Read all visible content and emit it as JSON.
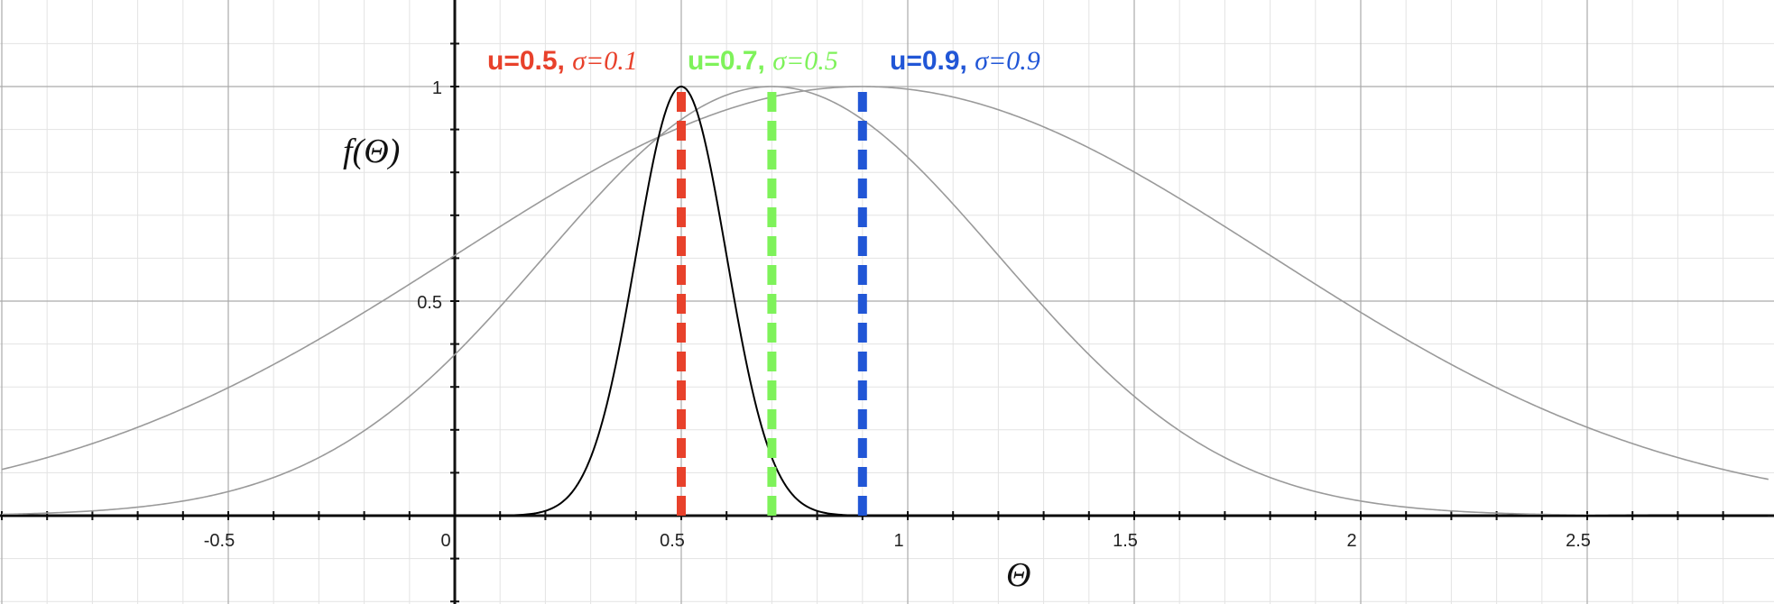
{
  "chart_data": {
    "type": "line",
    "title": "",
    "xlabel": "Θ",
    "ylabel": "f(Θ)",
    "xlim": [
      -1.0,
      2.9
    ],
    "ylim": [
      -0.2,
      1.2
    ],
    "grid": true,
    "x_ticks": [
      {
        "value": -0.5,
        "label": "-0.5"
      },
      {
        "value": 0,
        "label": "0"
      },
      {
        "value": 0.5,
        "label": "0.5"
      },
      {
        "value": 1,
        "label": "1"
      },
      {
        "value": 1.5,
        "label": "1.5"
      },
      {
        "value": 2,
        "label": "2"
      },
      {
        "value": 2.5,
        "label": "2.5"
      }
    ],
    "y_ticks": [
      {
        "value": 0.5,
        "label": "0.5"
      },
      {
        "value": 1,
        "label": "1"
      }
    ],
    "series": [
      {
        "mu": 0.5,
        "sigma": 0.1,
        "color": "#000000",
        "marker_color": "#e8412b",
        "label_mu": "u=0.5,",
        "label_sigma": "σ=0.1"
      },
      {
        "mu": 0.7,
        "sigma": 0.5,
        "color": "#9a9a9a",
        "marker_color": "#7ef25a",
        "label_mu": "u=0.7,",
        "label_sigma": "σ=0.5"
      },
      {
        "mu": 0.9,
        "sigma": 0.9,
        "color": "#9a9a9a",
        "marker_color": "#2156d6",
        "label_mu": "u=0.9,",
        "label_sigma": "σ=0.9"
      }
    ]
  }
}
